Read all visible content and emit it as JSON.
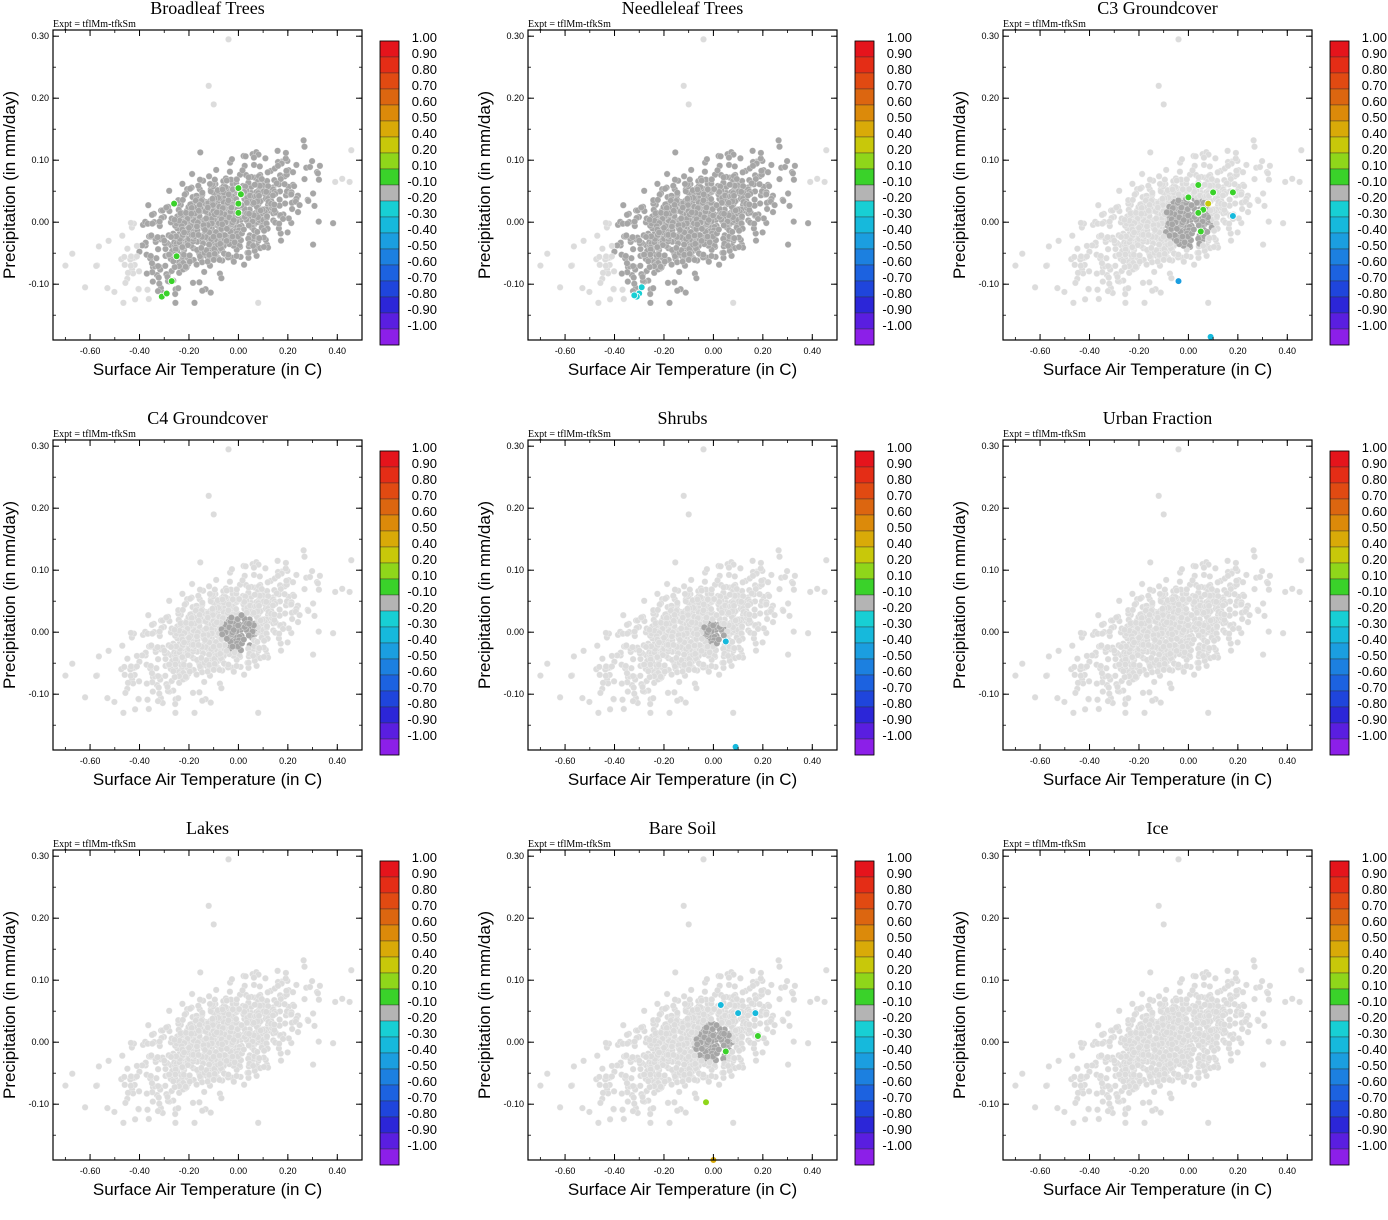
{
  "figure": {
    "expt_label": "Expt = tflMm-tfkSm",
    "xlabel": "Surface Air Temperature (in C)",
    "ylabel": "Precipitation (in mm/day)"
  },
  "chart_data": {
    "type": "scatter",
    "xlim": [
      -0.75,
      0.5
    ],
    "ylim": [
      -0.19,
      0.31
    ],
    "xticks": [
      "-0.60",
      "-0.40",
      "-0.20",
      "0.00",
      "0.20",
      "0.40"
    ],
    "xtick_values": [
      -0.6,
      -0.4,
      -0.2,
      0.0,
      0.2,
      0.4
    ],
    "yticks": [
      "0.30",
      "0.20",
      "0.10",
      "0.00",
      "-0.10"
    ],
    "ytick_values": [
      0.3,
      0.2,
      0.1,
      0.0,
      -0.1
    ],
    "colorbar": {
      "labels": [
        "1.00",
        "0.90",
        "0.80",
        "0.70",
        "0.60",
        "0.50",
        "0.40",
        "0.20",
        "0.10",
        "-0.10",
        "-0.20",
        "-0.30",
        "-0.40",
        "-0.50",
        "-0.60",
        "-0.70",
        "-0.80",
        "-0.90",
        "-1.00"
      ],
      "colors": [
        "#e5141c",
        "#e42d16",
        "#e14a12",
        "#dc6610",
        "#dc8a0a",
        "#d9aa08",
        "#c8c80a",
        "#8fd61a",
        "#3ad22a",
        "#b4b4b4",
        "#18cfd4",
        "#16b9dc",
        "#1b9ee0",
        "#1c80e0",
        "#1c62e0",
        "#1f45dc",
        "#2c26d8",
        "#5a1ee0",
        "#8c1fe8"
      ]
    },
    "point_colors": {
      "light": "#dcdcdc",
      "mid": "#a6a6a6",
      "dark": "#b0b0b0"
    },
    "panels": [
      {
        "title": "Broadleaf Trees",
        "background": "mid",
        "mid_fraction": 0.95,
        "highlights": [
          [
            -0.26,
            0.03,
            "#3ad22a"
          ],
          [
            0.0,
            0.055,
            "#3ad22a"
          ],
          [
            0.01,
            0.045,
            "#3ad22a"
          ],
          [
            0.0,
            0.03,
            "#3ad22a"
          ],
          [
            0.0,
            0.015,
            "#3ad22a"
          ],
          [
            -0.25,
            -0.055,
            "#3ad22a"
          ],
          [
            -0.27,
            -0.095,
            "#3ad22a"
          ],
          [
            -0.31,
            -0.12,
            "#3ad22a"
          ],
          [
            -0.29,
            -0.115,
            "#3ad22a"
          ]
        ]
      },
      {
        "title": "Needleleaf Trees",
        "background": "mid",
        "mid_fraction": 0.95,
        "highlights": [
          [
            -0.29,
            -0.105,
            "#18cfd4"
          ],
          [
            -0.3,
            -0.115,
            "#18cfd4"
          ],
          [
            -0.31,
            -0.12,
            "#18cfd4"
          ],
          [
            -0.32,
            -0.118,
            "#18cfd4"
          ]
        ]
      },
      {
        "title": "C3 Groundcover",
        "background": "light",
        "mid_fraction": 0.22,
        "highlights": [
          [
            0.04,
            0.06,
            "#3ad22a"
          ],
          [
            0.1,
            0.048,
            "#3ad22a"
          ],
          [
            0.18,
            0.048,
            "#3ad22a"
          ],
          [
            0.0,
            0.04,
            "#3ad22a"
          ],
          [
            0.08,
            0.03,
            "#c8c80a"
          ],
          [
            0.06,
            0.02,
            "#3ad22a"
          ],
          [
            0.04,
            0.015,
            "#3ad22a"
          ],
          [
            0.18,
            0.01,
            "#16b9dc"
          ],
          [
            0.05,
            -0.015,
            "#3ad22a"
          ],
          [
            -0.04,
            -0.095,
            "#1b9ee0"
          ],
          [
            0.09,
            -0.185,
            "#16b9dc"
          ]
        ]
      },
      {
        "title": "C4 Groundcover",
        "background": "light",
        "mid_fraction": 0.12,
        "highlights": []
      },
      {
        "title": "Shrubs",
        "background": "light",
        "mid_fraction": 0.06,
        "highlights": [
          [
            0.05,
            -0.015,
            "#16b9dc"
          ],
          [
            0.09,
            -0.185,
            "#16b9dc"
          ]
        ]
      },
      {
        "title": "Urban Fraction",
        "background": "light",
        "mid_fraction": 0.0,
        "highlights": []
      },
      {
        "title": "Lakes",
        "background": "light",
        "mid_fraction": 0.0,
        "highlights": []
      },
      {
        "title": "Bare Soil",
        "background": "light",
        "mid_fraction": 0.14,
        "highlights": [
          [
            0.03,
            0.06,
            "#16b9dc"
          ],
          [
            0.1,
            0.047,
            "#16b9dc"
          ],
          [
            0.17,
            0.047,
            "#16b9dc"
          ],
          [
            0.18,
            0.01,
            "#3ad22a"
          ],
          [
            0.05,
            -0.015,
            "#3ad22a"
          ],
          [
            -0.03,
            -0.097,
            "#8fd61a"
          ],
          [
            0.0,
            -0.19,
            "#d9aa08"
          ]
        ]
      },
      {
        "title": "Ice",
        "background": "light",
        "mid_fraction": 0.0,
        "highlights": []
      }
    ]
  }
}
